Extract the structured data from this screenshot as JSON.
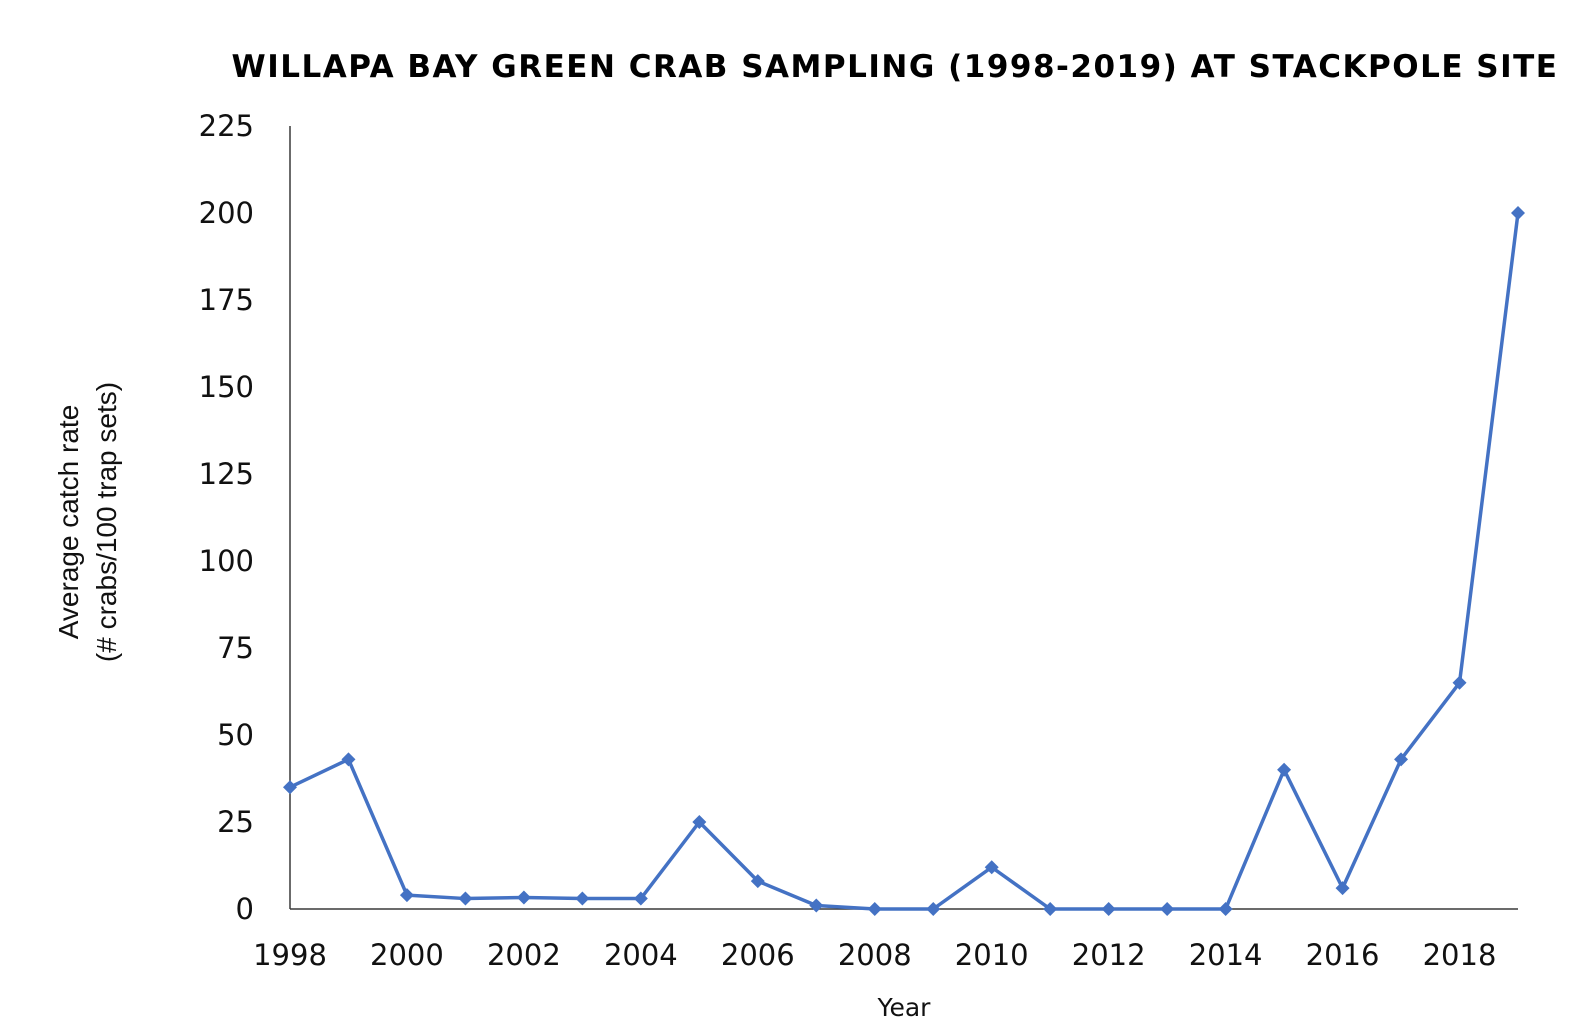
{
  "chart_data": {
    "type": "line",
    "title": "WILLAPA BAY GREEN CRAB SAMPLING (1998-2019) AT STACKPOLE SITE",
    "xlabel": "Year",
    "ylabel_lines": [
      "Average catch rate",
      "(# crabs/100 trap sets)"
    ],
    "x": [
      1998,
      1999,
      2000,
      2001,
      2002,
      2003,
      2004,
      2005,
      2006,
      2007,
      2008,
      2009,
      2010,
      2011,
      2012,
      2013,
      2014,
      2015,
      2016,
      2017,
      2018,
      2019
    ],
    "series": [
      {
        "values": [
          35,
          43,
          4,
          3,
          3.3,
          3,
          3,
          25,
          8,
          1,
          0,
          0,
          12,
          0,
          0,
          0,
          0,
          40,
          6,
          43,
          65,
          200
        ]
      }
    ],
    "xlim": [
      1998,
      2019
    ],
    "ylim": [
      0,
      225
    ],
    "yticks": [
      0,
      25,
      50,
      75,
      100,
      125,
      150,
      175,
      200,
      225
    ],
    "xticks": [
      1998,
      2000,
      2002,
      2004,
      2006,
      2008,
      2010,
      2012,
      2014,
      2016,
      2018
    ],
    "marker": "diamond",
    "line_color": "#4472C4",
    "grid": false,
    "legend": "none"
  }
}
